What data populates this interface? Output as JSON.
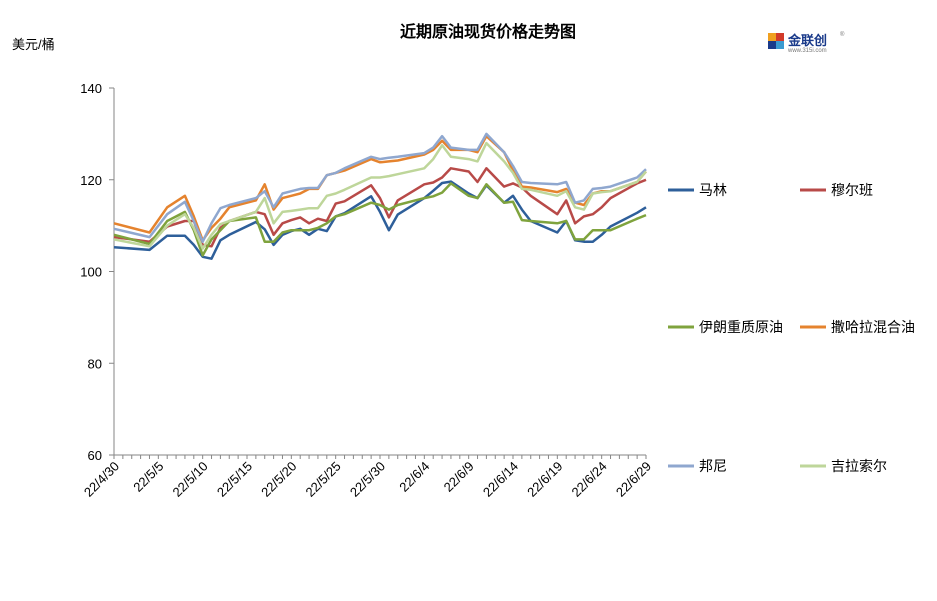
{
  "chart_data": {
    "type": "line",
    "title": "近期原油现货价格走势图",
    "ylabel": "美元/桶",
    "ylim": [
      60,
      140
    ],
    "yticks": [
      60,
      80,
      100,
      120,
      140
    ],
    "xticks": [
      "22/4/30",
      "22/5/5",
      "22/5/10",
      "22/5/15",
      "22/5/20",
      "22/5/25",
      "22/5/30",
      "22/6/4",
      "22/6/9",
      "22/6/14",
      "22/6/19",
      "22/6/24",
      "22/6/29"
    ],
    "x_range": [
      0,
      60
    ],
    "x": [
      0,
      4,
      6,
      8,
      9,
      10,
      11,
      12,
      13,
      16,
      17,
      18,
      19,
      20,
      21,
      22,
      23,
      24,
      25,
      26,
      29,
      30,
      31,
      32,
      35,
      36,
      37,
      38,
      40,
      41,
      42,
      44,
      45,
      46,
      47,
      50,
      51,
      52,
      53,
      54,
      55,
      56,
      59,
      60
    ],
    "grid": false,
    "legend_position": "right",
    "series": [
      {
        "name": "马林",
        "color": "#2e5f9a",
        "values": [
          105.3,
          104.7,
          107.8,
          107.8,
          105.8,
          103.2,
          102.8,
          106.8,
          108,
          110.8,
          109.2,
          105.8,
          108,
          108.8,
          109.3,
          108,
          109.3,
          108.8,
          112,
          112.7,
          116.4,
          113,
          109,
          112.4,
          116,
          117.6,
          119.3,
          119.6,
          117,
          116,
          118.8,
          115,
          116.5,
          113.5,
          111,
          108.5,
          111,
          106.8,
          106.5,
          106.5,
          108,
          109.8,
          112.8,
          114
        ]
      },
      {
        "name": "穆尔班",
        "color": "#b84a48",
        "values": [
          107.5,
          106.5,
          109.8,
          111,
          111,
          105.8,
          105.5,
          109.5,
          111,
          113,
          112.5,
          108,
          110.5,
          111.2,
          111.8,
          110.5,
          111.5,
          111,
          114.8,
          115.3,
          118.8,
          116,
          111.8,
          115.5,
          119,
          119.4,
          120.5,
          122.5,
          121.8,
          119.5,
          122.5,
          118.5,
          119.2,
          118.3,
          116.5,
          112.5,
          115.5,
          110.5,
          112,
          112.5,
          114,
          116,
          119.2,
          120
        ]
      },
      {
        "name": "伊朗重质原油",
        "color": "#7fa33d",
        "values": [
          108,
          106,
          111,
          113,
          109,
          103.5,
          107,
          109,
          111,
          111.8,
          106.5,
          106.5,
          108.5,
          109,
          109,
          109,
          109.5,
          110.5,
          112,
          112.5,
          115,
          114.5,
          113.5,
          114.5,
          116,
          116.4,
          117.2,
          119.2,
          116.5,
          116,
          119,
          115,
          115.2,
          111.2,
          111,
          110.5,
          111,
          107,
          107,
          109,
          109,
          109,
          111.5,
          112.3
        ]
      },
      {
        "name": "撒哈拉混合油",
        "color": "#e5832e",
        "values": [
          110.5,
          108.5,
          114,
          116.5,
          112,
          106.8,
          109.5,
          111.5,
          114,
          115.5,
          119,
          113.5,
          116,
          116.5,
          117,
          118,
          118,
          121,
          121.5,
          122,
          124.5,
          123.8,
          124,
          124.2,
          125.5,
          126.5,
          128.5,
          126.5,
          126.5,
          126,
          129.5,
          126,
          122,
          118.5,
          118.3,
          117.3,
          118,
          115,
          114.5,
          117,
          117.5,
          117.5,
          119.5,
          121.8
        ]
      },
      {
        "name": "邦尼",
        "color": "#8fa7cf",
        "values": [
          109.3,
          107.5,
          112.5,
          115.2,
          111,
          106.5,
          110.5,
          113.8,
          114.5,
          116,
          117.5,
          114,
          117,
          117.5,
          118,
          118.2,
          118.2,
          121,
          121.5,
          122.5,
          125,
          124.5,
          124.8,
          125,
          125.8,
          127,
          129.5,
          127,
          126.5,
          126.5,
          130,
          126,
          123,
          119.5,
          119.3,
          119,
          119.5,
          115,
          115.5,
          118,
          118.2,
          118.5,
          120.5,
          122.3
        ]
      },
      {
        "name": "吉拉索尔",
        "color": "#bed69a",
        "values": [
          107,
          105.5,
          110,
          112.5,
          109.5,
          105,
          108,
          110.3,
          111,
          113,
          116,
          110.5,
          113,
          113.2,
          113.5,
          113.8,
          113.8,
          116.5,
          117,
          117.8,
          120.5,
          120.5,
          120.8,
          121.2,
          122.5,
          124.5,
          127.5,
          125,
          124.5,
          124,
          128,
          124,
          121.5,
          118,
          117.8,
          116.5,
          117.5,
          114,
          113.5,
          117,
          117.3,
          117.5,
          119.5,
          121.8
        ]
      }
    ]
  },
  "logo": {
    "text": "金联创",
    "sub": "www.315i.com",
    "mark": "®"
  }
}
